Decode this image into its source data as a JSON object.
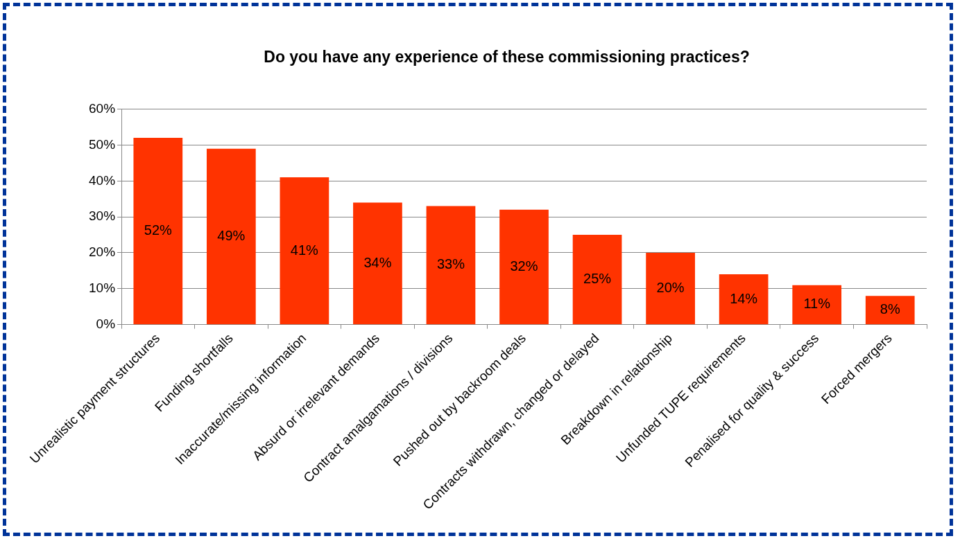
{
  "chart_data": {
    "type": "bar",
    "title": "Do you have any experience of these commissioning practices?",
    "categories": [
      "Unrealistic payment structures",
      "Funding shortfalls",
      "Inaccurate/missing information",
      "Absurd or irrelevant demands",
      "Contract amalgamations / divisions",
      "Pushed out by backroom deals",
      "Contracts withdrawn, changed or delayed",
      "Breakdown in relationship",
      "Unfunded TUPE requirements",
      "Penalised for quality & success",
      "Forced mergers"
    ],
    "values": [
      52,
      49,
      41,
      34,
      33,
      32,
      25,
      20,
      14,
      11,
      8
    ],
    "value_labels": [
      "52%",
      "49%",
      "41%",
      "34%",
      "33%",
      "32%",
      "25%",
      "20%",
      "14%",
      "11%",
      "8%"
    ],
    "color": "#ff3300",
    "ylim": [
      0,
      60
    ],
    "yticks": [
      {
        "value": 0,
        "label": "0%"
      },
      {
        "value": 10,
        "label": "10%"
      },
      {
        "value": 20,
        "label": "20%"
      },
      {
        "value": 30,
        "label": "30%"
      },
      {
        "value": 40,
        "label": "40%"
      },
      {
        "value": 50,
        "label": "50%"
      },
      {
        "value": 60,
        "label": "60%"
      }
    ],
    "grid": "y"
  }
}
